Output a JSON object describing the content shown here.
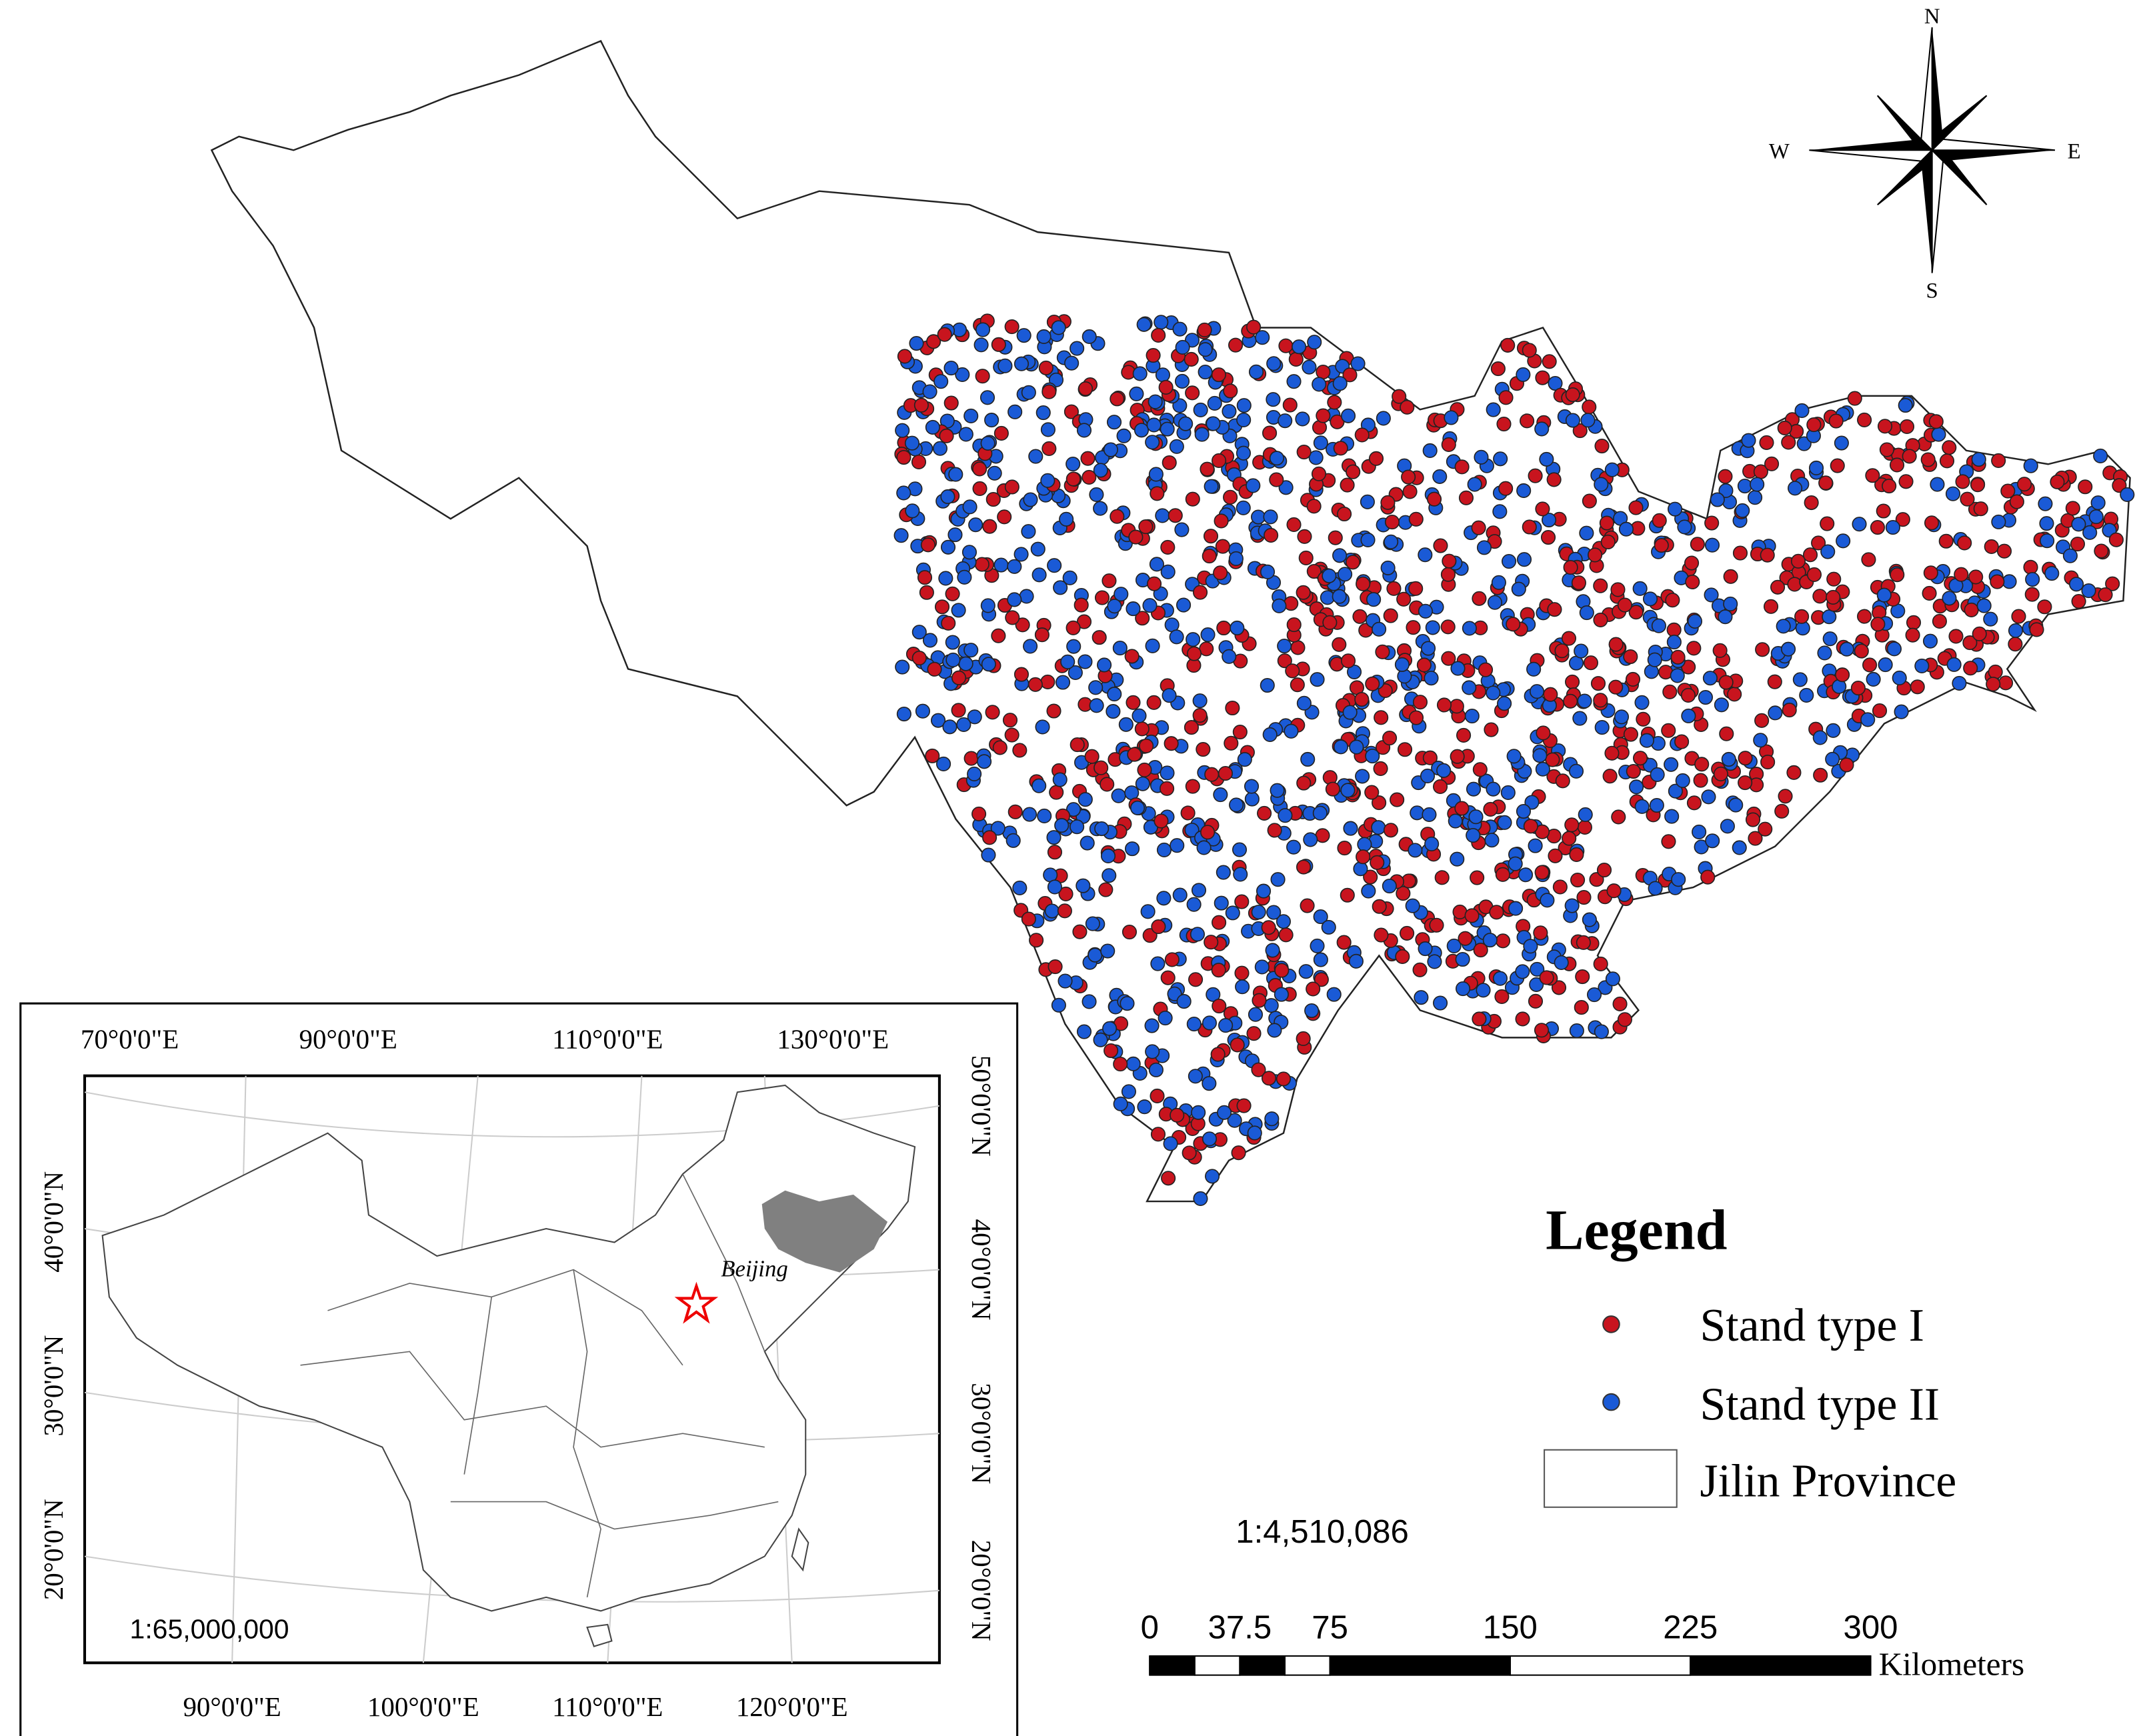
{
  "compass": {
    "n": "N",
    "s": "S",
    "w": "W",
    "e": "E"
  },
  "legend": {
    "title": "Legend",
    "items": [
      {
        "label": "Stand type I",
        "color": "#c8141e"
      },
      {
        "label": "Stand type II",
        "color": "#1a5ad6"
      },
      {
        "label": "Jilin Province",
        "color": "#ffffff"
      }
    ]
  },
  "scale": "1:4,510,086",
  "scale_bar": {
    "ticks": [
      0,
      37.5,
      75,
      150,
      225,
      300
    ],
    "unit": "Kilometers"
  },
  "inset": {
    "top_labels": [
      "70°0'0\"E",
      "90°0'0\"E",
      "110°0'0\"E",
      "130°0'0\"E"
    ],
    "bottom_labels": [
      "90°0'0\"E",
      "100°0'0\"E",
      "110°0'0\"E",
      "120°0'0\"E"
    ],
    "left_labels": [
      "40°0'0\"N",
      "30°0'0\"N",
      "20°0'0\"N"
    ],
    "right_labels": [
      "50°0'0\"N",
      "40°0'0\"N",
      "30°0'0\"N",
      "20°0'0\"N"
    ],
    "city": "Beijing",
    "scale": "1:65,000,000"
  }
}
